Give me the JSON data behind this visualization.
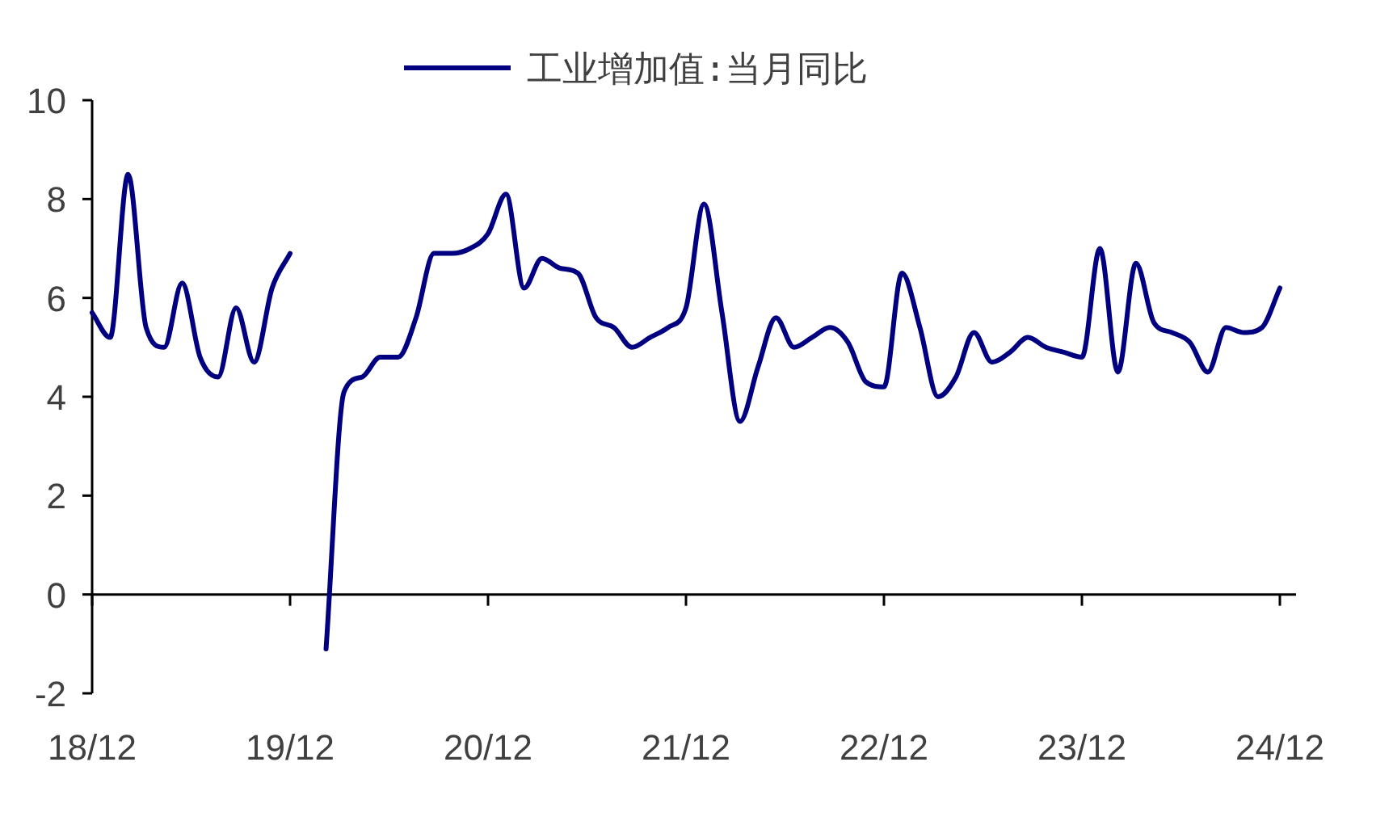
{
  "chart_data": {
    "type": "line",
    "categories": [
      "18/12",
      null,
      null,
      null,
      null,
      null,
      null,
      null,
      null,
      null,
      null,
      "19/12",
      null,
      null,
      null,
      null,
      null,
      null,
      null,
      null,
      null,
      null,
      "20/12",
      null,
      null,
      null,
      null,
      null,
      null,
      null,
      null,
      null,
      null,
      "21/12",
      null,
      null,
      null,
      null,
      null,
      null,
      null,
      null,
      null,
      null,
      "22/12",
      null,
      null,
      null,
      null,
      null,
      null,
      null,
      null,
      null,
      null,
      "23/12",
      null,
      null,
      null,
      null,
      null,
      null,
      null,
      null,
      null,
      null,
      "24/12"
    ],
    "series": [
      {
        "name": "工业增加值:当月同比",
        "color": "#000080",
        "values": [
          5.7,
          5.2,
          8.5,
          5.4,
          5.0,
          6.3,
          4.8,
          4.4,
          5.8,
          4.7,
          6.2,
          6.9,
          null,
          -1.1,
          4.1,
          4.4,
          4.8,
          4.8,
          5.6,
          6.9,
          6.9,
          7.0,
          7.3,
          8.1,
          6.2,
          6.8,
          6.6,
          6.5,
          5.6,
          5.4,
          5.0,
          5.2,
          5.4,
          5.8,
          7.9,
          5.7,
          3.5,
          4.6,
          5.6,
          5.0,
          5.2,
          5.4,
          5.1,
          4.3,
          4.2,
          6.5,
          5.4,
          4.0,
          4.4,
          5.3,
          4.7,
          4.9,
          5.2,
          5.0,
          4.9,
          4.8,
          7.0,
          4.5,
          6.7,
          5.5,
          5.3,
          5.1,
          4.5,
          5.4,
          5.3,
          5.4,
          6.2
        ]
      }
    ],
    "ylim": [
      -2,
      10
    ],
    "yticks": [
      -2,
      0,
      2,
      4,
      6,
      8,
      10
    ],
    "legend": "top"
  }
}
